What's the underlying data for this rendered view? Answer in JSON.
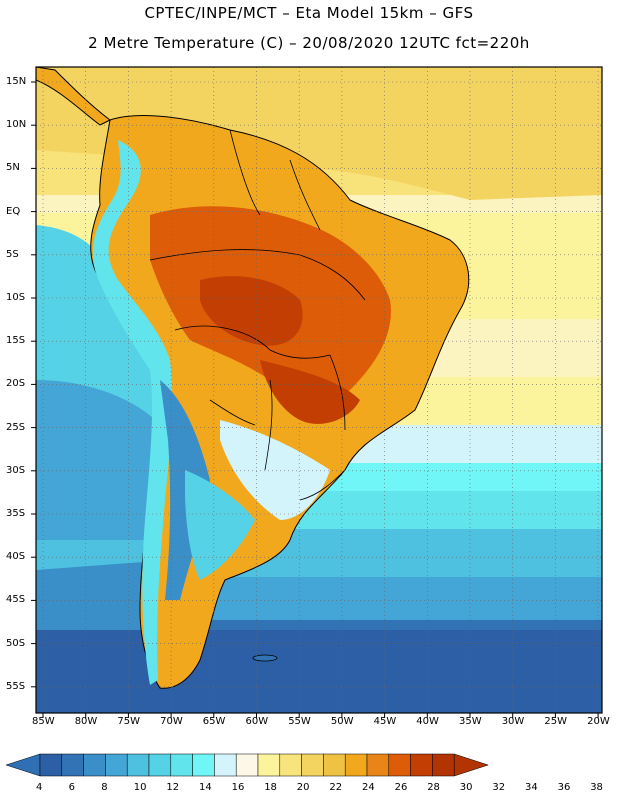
{
  "header": {
    "line1": "CPTEC/INPE/MCT –  Eta Model 15km – GFS",
    "line2": "2 Metre Temperature (C) – 20/08/2020 12UTC fct=220h"
  },
  "map": {
    "lat_labels": [
      "15N",
      "10N",
      "5N",
      "EQ",
      "5S",
      "10S",
      "15S",
      "20S",
      "25S",
      "30S",
      "35S",
      "40S",
      "45S",
      "50S",
      "55S"
    ],
    "lon_labels": [
      "85W",
      "80W",
      "75W",
      "70W",
      "65W",
      "60W",
      "55W",
      "50W",
      "45W",
      "40W",
      "35W",
      "30W",
      "25W",
      "20W"
    ]
  },
  "colorbar": {
    "labels": [
      "4",
      "6",
      "8",
      "10",
      "12",
      "14",
      "16",
      "18",
      "20",
      "22",
      "24",
      "26",
      "28",
      "30",
      "32",
      "34",
      "36",
      "38"
    ],
    "colors": [
      "#2c5fa6",
      "#3273b5",
      "#3a8fc8",
      "#44a6d6",
      "#4ec0e0",
      "#56d2e6",
      "#62e4ec",
      "#70f6f6",
      "#d4f4fc",
      "#fcf8e8",
      "#fcf49c",
      "#f8e47c",
      "#f4d460",
      "#f0c244",
      "#f2a81c",
      "#e88418",
      "#dc5c08",
      "#c23e02",
      "#b23402"
    ],
    "low_color": "#2f6fb4",
    "high_color": "#b23402"
  }
}
